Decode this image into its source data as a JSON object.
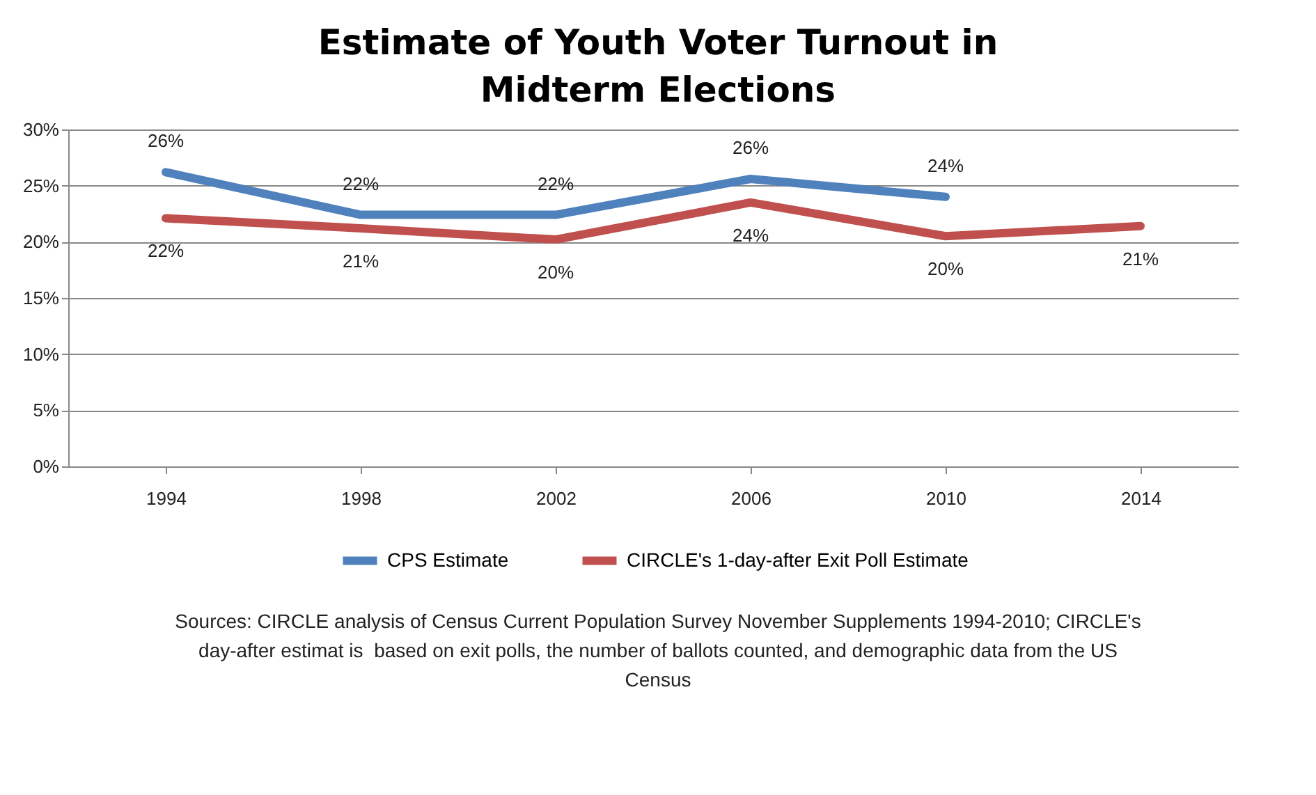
{
  "chart_data": {
    "type": "line",
    "title": "Estimate of Youth Voter Turnout in Midterm Elections",
    "categories": [
      "1994",
      "1998",
      "2002",
      "2006",
      "2010",
      "2014"
    ],
    "series": [
      {
        "name": "CPS Estimate",
        "color": "#4f81bd",
        "values": [
          26.2,
          22.4,
          22.4,
          25.6,
          24.0,
          null
        ],
        "value_labels": [
          "26%",
          "22%",
          "22%",
          "26%",
          "24%",
          null
        ]
      },
      {
        "name": "CIRCLE's 1-day-after Exit Poll Estimate",
        "color": "#c0504d",
        "values": [
          22.1,
          21.2,
          20.2,
          23.5,
          20.5,
          21.4
        ],
        "value_labels": [
          "22%",
          "21%",
          "20%",
          "24%",
          "20%",
          "21%"
        ]
      }
    ],
    "ylim": [
      0,
      30
    ],
    "yticks": [
      {
        "value": 0,
        "label": "0%"
      },
      {
        "value": 5,
        "label": "5%"
      },
      {
        "value": 10,
        "label": "10%"
      },
      {
        "value": 15,
        "label": "15%"
      },
      {
        "value": 20,
        "label": "20%"
      },
      {
        "value": 25,
        "label": "25%"
      },
      {
        "value": 30,
        "label": "30%"
      }
    ],
    "grid": "y",
    "legend": "bottom",
    "marker": "none",
    "annotations": [
      "Sources: CIRCLE analysis of Census Current Population Survey November Supplements 1994-2010; CIRCLE's day-after estimat is  based on exit polls, the number of ballots counted, and demographic data from the US Census"
    ]
  }
}
